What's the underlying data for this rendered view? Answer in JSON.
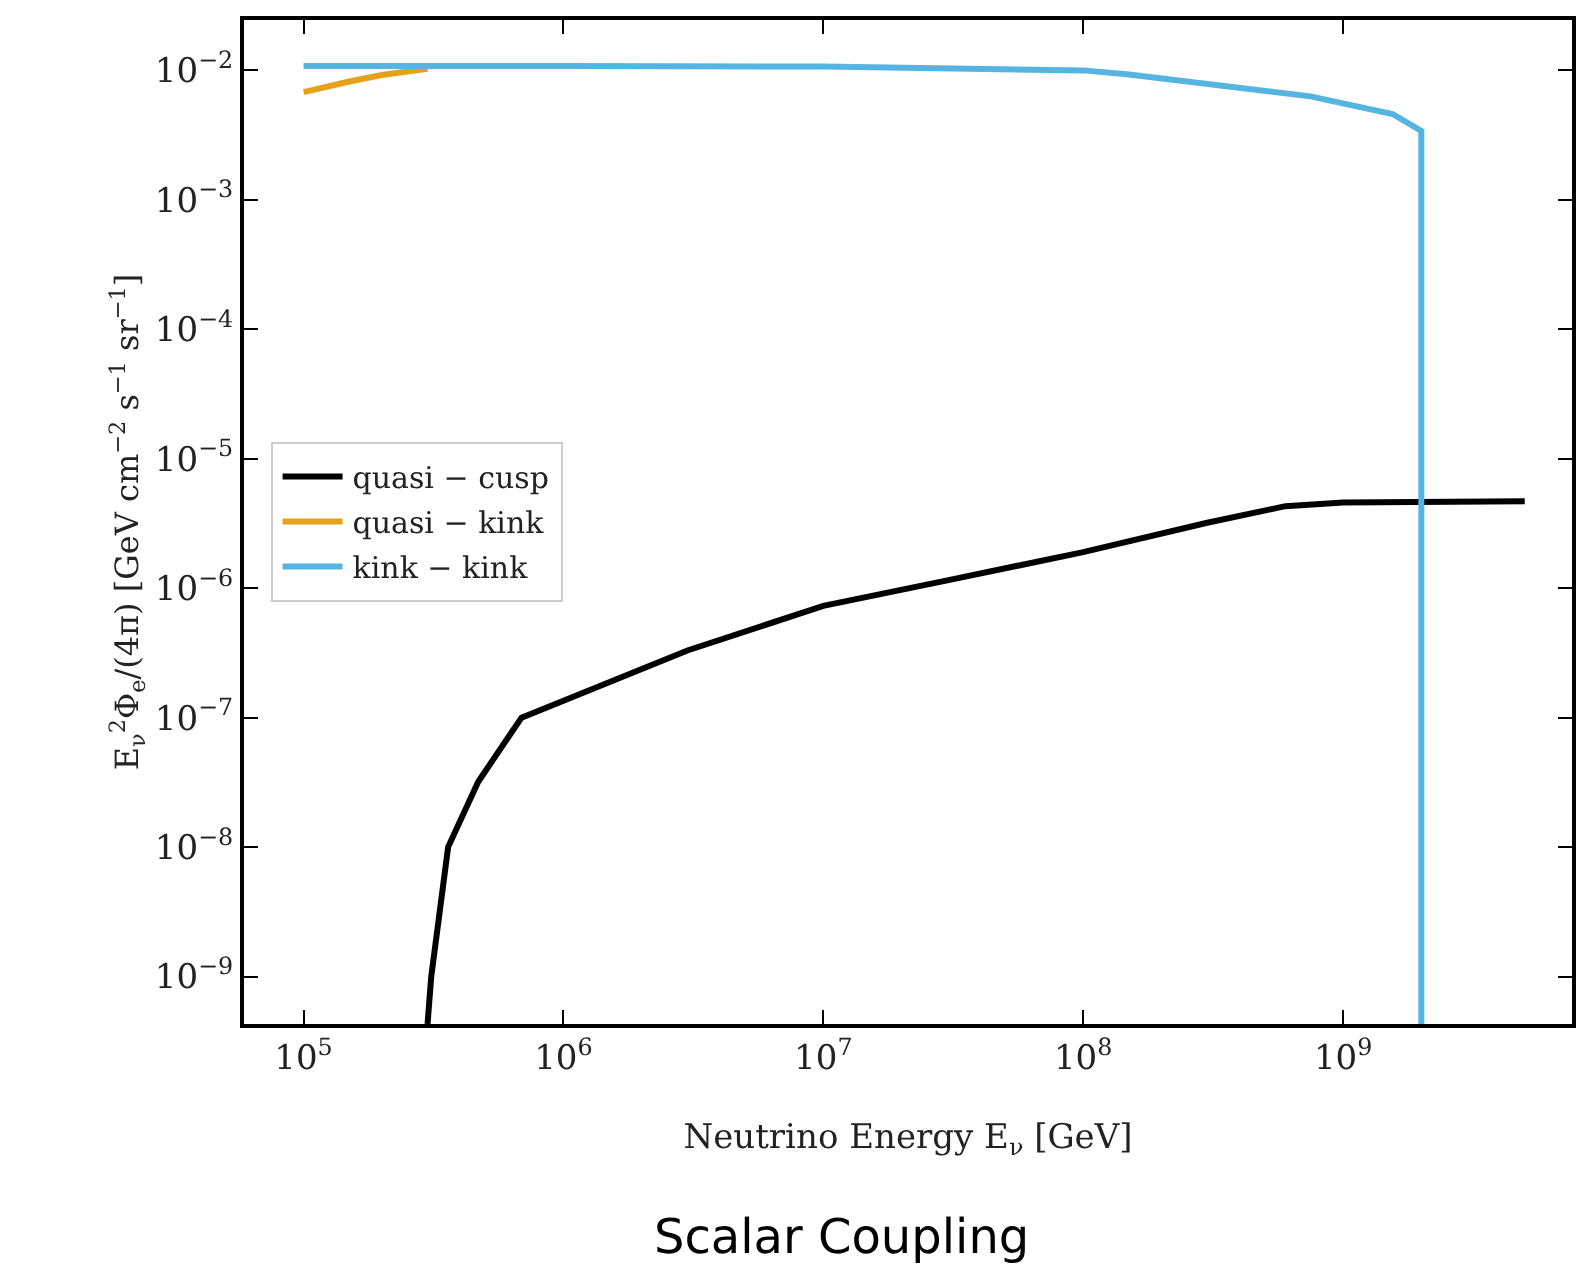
{
  "chart_data": {
    "type": "line",
    "title": "Scalar Coupling",
    "xlabel": "Neutrino Energy E$_{ν}$ [GeV]",
    "ylabel": "E$_{ν}$$^{2}$Φ$_{e}$/(4π) [GeV cm$^{−2}$ s$^{−1}$ sr$^{−1}$]",
    "log": "xy",
    "xlim": [
      59000,
      7600000000
    ],
    "ylim": [
      4.3e-10,
      0.0245
    ],
    "xticks": [
      {
        "value": 100000,
        "label": "10$^{5}$"
      },
      {
        "value": 1000000,
        "label": "10$^{6}$"
      },
      {
        "value": 10000000,
        "label": "10$^{7}$"
      },
      {
        "value": 100000000,
        "label": "10$^{8}$"
      },
      {
        "value": 1000000000,
        "label": "10$^{9}$"
      }
    ],
    "yticks": [
      {
        "value": 1e-09,
        "label": "10$^{−9}$"
      },
      {
        "value": 1e-08,
        "label": "10$^{−8}$"
      },
      {
        "value": 1e-07,
        "label": "10$^{−7}$"
      },
      {
        "value": 1e-06,
        "label": "10$^{−6}$"
      },
      {
        "value": 1e-05,
        "label": "10$^{−5}$"
      },
      {
        "value": 0.0001,
        "label": "10$^{−4}$"
      },
      {
        "value": 0.001,
        "label": "10$^{−3}$"
      },
      {
        "value": 0.01,
        "label": "10$^{−2}$"
      }
    ],
    "grid": false,
    "legend": "left",
    "marker": "none",
    "line_style": "solid",
    "series": [
      {
        "name": "quasi − cusp",
        "color": "#000000",
        "x": [
          300000,
          310000,
          360000,
          470000,
          690000,
          1000000,
          3000000,
          10000000,
          30000000,
          100000000,
          300000000,
          600000000,
          1000000000,
          5000000000
        ],
        "values": [
          4.3e-10,
          1e-09,
          1e-08,
          3.2e-08,
          1e-07,
          1.35e-07,
          3.3e-07,
          7.3e-07,
          1.15e-06,
          1.9e-06,
          3.2e-06,
          4.3e-06,
          4.6e-06,
          4.7e-06
        ]
      },
      {
        "name": "quasi − kink",
        "color": "#e6a11a",
        "x": [
          100000,
          150000,
          200000,
          300000
        ],
        "values": [
          0.0068,
          0.0082,
          0.0092,
          0.0103
        ]
      },
      {
        "name": "kink − kink",
        "color": "#56b4e0",
        "x": [
          100000,
          1000000,
          10000000,
          100000000,
          150000000,
          750000000,
          1550000000,
          2000000000,
          2000000000
        ],
        "values": [
          0.0108,
          0.0108,
          0.0107,
          0.01,
          0.0093,
          0.0063,
          0.0046,
          0.0034,
          4.3e-10
        ]
      }
    ]
  }
}
